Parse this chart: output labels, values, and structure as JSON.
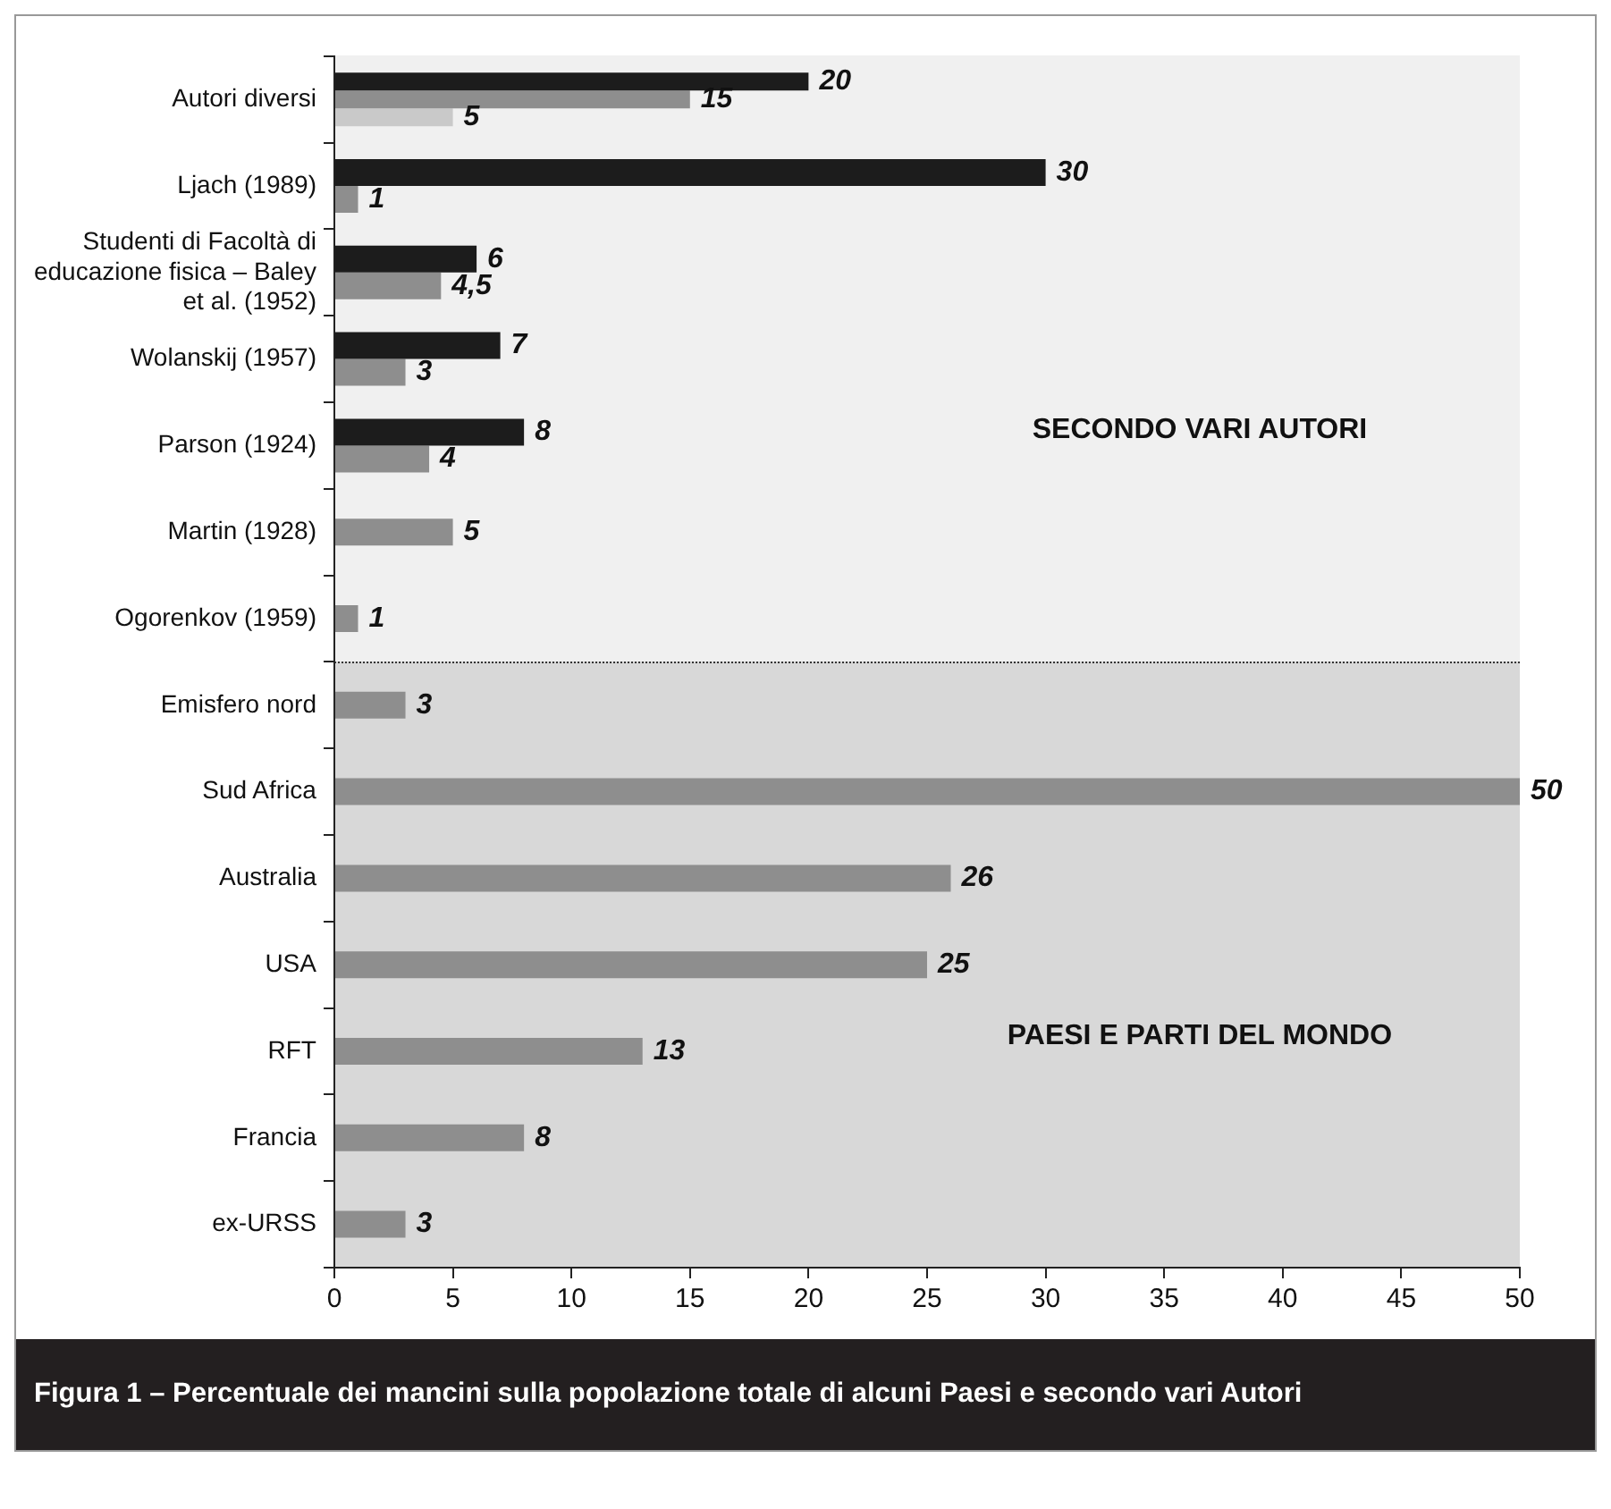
{
  "chart_data": {
    "type": "bar",
    "orientation": "horizontal",
    "title": "Figura 1 – Percentuale dei mancini sulla popolazione totale di alcuni Paesi e secondo vari Autori",
    "categories": [
      "Autori diversi",
      "Ljach (1989)",
      "Studenti di Facoltà di educazione fisica – Baley et al. (1952)",
      "Wolanskij (1957)",
      "Parson (1924)",
      "Martin (1928)",
      "Ogorenkov (1959)",
      "Emisfero nord",
      "Sud Africa",
      "Australia",
      "USA",
      "RFT",
      "Francia",
      "ex-URSS"
    ],
    "series": [
      {
        "color": "#1c1c1c",
        "values": [
          20,
          30,
          6,
          7,
          8,
          null,
          null,
          null,
          null,
          null,
          null,
          null,
          null,
          null
        ],
        "value_labels": [
          "20",
          "30",
          "6",
          "7",
          "8",
          null,
          null,
          null,
          null,
          null,
          null,
          null,
          null,
          null
        ]
      },
      {
        "color": "#8e8e8e",
        "values": [
          15,
          1,
          4.5,
          3,
          4,
          5,
          1,
          3,
          50,
          26,
          25,
          13,
          8,
          3
        ],
        "value_labels": [
          "15",
          "1",
          "4,5",
          "3",
          "4",
          "5",
          "1",
          "3",
          "50",
          "26",
          "25",
          "13",
          "8",
          "3"
        ]
      },
      {
        "color": "#c9c9c9",
        "values": [
          5,
          null,
          null,
          null,
          null,
          null,
          null,
          null,
          null,
          null,
          null,
          null,
          null,
          null
        ],
        "value_labels": [
          "5",
          null,
          null,
          null,
          null,
          null,
          null,
          null,
          null,
          null,
          null,
          null,
          null,
          null
        ]
      }
    ],
    "annotations": [
      "SECONDO VARI AUTORI",
      "PAESI E PARTI DEL MONDO"
    ],
    "xlim": [
      0,
      50
    ],
    "xticks": [
      0,
      5,
      10,
      15,
      20,
      25,
      30,
      35,
      40,
      45,
      50
    ],
    "grid": false,
    "legend": false
  }
}
